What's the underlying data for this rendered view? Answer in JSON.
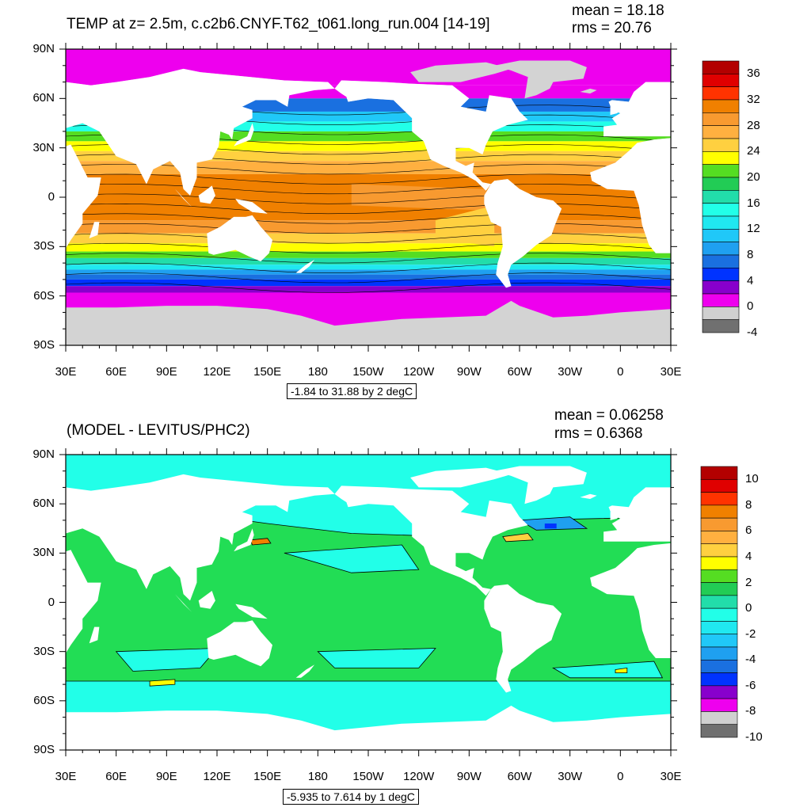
{
  "panels": [
    {
      "title": "TEMP at z=   2.5m, c.c2b6.CNYF.T62_t061.long_run.004 [14-19]",
      "mean": "mean = 18.18",
      "rms": "rms = 20.76",
      "range_label": "-1.84 to 31.88 by 2 degC",
      "lat_labels": [
        "90N",
        "60N",
        "30N",
        "0",
        "30S",
        "60S",
        "90S"
      ],
      "lon_labels": [
        "30E",
        "60E",
        "90E",
        "120E",
        "150E",
        "180",
        "150W",
        "120W",
        "90W",
        "60W",
        "30W",
        "0",
        "30E"
      ],
      "colorbar": {
        "labels": [
          "36",
          "32",
          "28",
          "24",
          "20",
          "16",
          "12",
          "8",
          "4",
          "0",
          "-4"
        ],
        "colors": [
          "#b30000",
          "#e00000",
          "#ff3300",
          "#f08000",
          "#f89a30",
          "#ffb040",
          "#ffd040",
          "#ffff00",
          "#55dd22",
          "#22cc55",
          "#22ddaa",
          "#22ffe8",
          "#20e8f0",
          "#20c8f8",
          "#1fa0f0",
          "#1a70e0",
          "#0033ff",
          "#8800cc",
          "#ee00ee",
          "#d0d0d0",
          "#707070"
        ]
      }
    },
    {
      "title": "(MODEL - LEVITUS/PHC2)",
      "mean": "mean = 0.06258",
      "rms": "rms = 0.6368",
      "range_label": "-5.935 to 7.614 by 1 degC",
      "lat_labels": [
        "90N",
        "60N",
        "30N",
        "0",
        "30S",
        "60S",
        "90S"
      ],
      "lon_labels": [
        "30E",
        "60E",
        "90E",
        "120E",
        "150E",
        "180",
        "150W",
        "120W",
        "90W",
        "60W",
        "30W",
        "0",
        "30E"
      ],
      "colorbar": {
        "labels": [
          "10",
          "8",
          "6",
          "4",
          "2",
          "0",
          "-2",
          "-4",
          "-6",
          "-8",
          "-10"
        ],
        "colors": [
          "#b30000",
          "#e00000",
          "#ff3300",
          "#f08000",
          "#f89a30",
          "#ffb040",
          "#ffd040",
          "#ffff00",
          "#55dd22",
          "#22cc55",
          "#22ddaa",
          "#22ffe8",
          "#20e8f0",
          "#20c8f8",
          "#1fa0f0",
          "#1a70e0",
          "#0033ff",
          "#8800cc",
          "#ee00ee",
          "#d0d0d0",
          "#707070"
        ]
      }
    }
  ]
}
